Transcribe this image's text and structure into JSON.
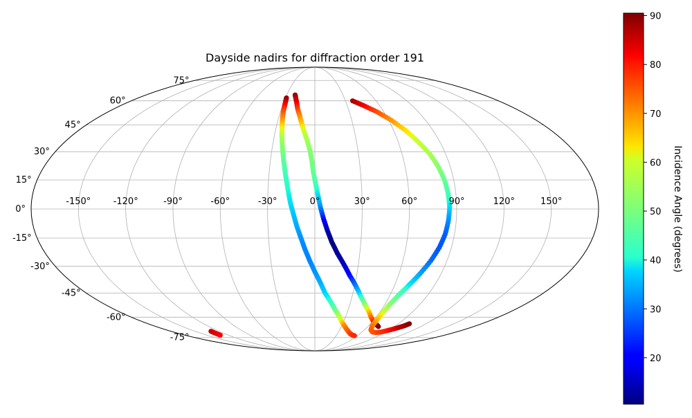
{
  "chart_data": {
    "type": "scatter",
    "projection": "mollweide",
    "title": "Dayside nadirs for diffraction order 191",
    "grid": true,
    "lon_ticks": [
      "-150°",
      "-120°",
      "-90°",
      "-60°",
      "-30°",
      "0°",
      "30°",
      "60°",
      "90°",
      "120°",
      "150°"
    ],
    "lat_ticks": [
      "-75°",
      "-60°",
      "-45°",
      "-30°",
      "-15°",
      "0°",
      "15°",
      "30°",
      "45°",
      "60°",
      "75°"
    ],
    "colorbar": {
      "label": "Incidence Angle (degrees)",
      "colormap": "jet",
      "range": [
        10.5,
        90.5
      ],
      "ticks": [
        "20",
        "30",
        "40",
        "50",
        "60",
        "70",
        "80",
        "90"
      ],
      "tick_values": [
        20,
        30,
        40,
        50,
        60,
        70,
        80,
        90
      ]
    },
    "series": [
      {
        "lon": [
          -29,
          -28.5,
          -28,
          -27.5,
          -26.5,
          -25.5,
          -24.5,
          -23,
          -21.5,
          -20,
          -18.5,
          -17,
          -15.5,
          -13.5,
          -11.5,
          -9,
          -6.5,
          -3.5,
          0,
          4,
          8,
          13,
          18,
          23,
          28,
          33,
          38,
          43,
          47.5,
          52,
          56
        ],
        "lat": [
          62,
          60,
          57,
          53,
          48,
          44,
          39,
          33,
          27,
          21,
          15,
          9,
          3,
          -3,
          -9,
          -15,
          -21,
          -27,
          -33,
          -39,
          -45,
          -50,
          -55,
          -59,
          -63,
          -66,
          -68.5,
          -70.5,
          -72,
          -73,
          -73.5
        ],
        "incidence": [
          90,
          87,
          82,
          76,
          70,
          64,
          58,
          52,
          48,
          45,
          42,
          40,
          38,
          36,
          34,
          32,
          31,
          31,
          32,
          34,
          37,
          41,
          47,
          55,
          63,
          70,
          73,
          75,
          77,
          78,
          79
        ]
      },
      {
        "lon": [
          -21,
          -19.5,
          -17.5,
          -15.5,
          -13,
          -10.5,
          -8,
          -5.5,
          -3.5,
          -2,
          -1,
          0.5,
          2,
          3.5,
          5.5,
          8,
          11,
          15,
          20,
          25,
          31,
          37,
          43,
          49,
          55,
          61,
          67,
          72
        ],
        "lat": [
          64,
          62,
          59,
          55,
          51,
          46,
          41,
          36,
          31,
          25,
          19,
          13,
          7,
          1,
          -5,
          -11,
          -17,
          -23,
          -29,
          -35,
          -41,
          -47,
          -52,
          -56,
          -60,
          -63,
          -65,
          -66.5
        ],
        "incidence": [
          90,
          87,
          84,
          78,
          72,
          66,
          60,
          56,
          52,
          50,
          48,
          44,
          38,
          32,
          22,
          14,
          11,
          12,
          15,
          21,
          30,
          40,
          52,
          64,
          72,
          78,
          85,
          90
        ]
      },
      {
        "lon": [
          37,
          45,
          54,
          62,
          69,
          74,
          79,
          82,
          84,
          85,
          85.5,
          85,
          84,
          82,
          79,
          75,
          71,
          67,
          64,
          63,
          63,
          64,
          68,
          73,
          79,
          85,
          91,
          96,
          100,
          102
        ],
        "lat": [
          60,
          57,
          53,
          48,
          42,
          36,
          29,
          22,
          15,
          8,
          1,
          -6,
          -13,
          -20,
          -27,
          -34,
          -40,
          -46,
          -52,
          -57,
          -62,
          -66,
          -69,
          -70.5,
          -71,
          -70.5,
          -69,
          -67.5,
          -66,
          -64.5
        ],
        "incidence": [
          88,
          83,
          76,
          70,
          64,
          60,
          56,
          52,
          48,
          44,
          38,
          32,
          28,
          27,
          29,
          33,
          38,
          44,
          52,
          60,
          67,
          72,
          74,
          75,
          76,
          78,
          81,
          85,
          88,
          90
        ]
      },
      {
        "lon": [
          -130,
          -130.5,
          -131
        ],
        "lat": [
          -70,
          -71.5,
          -73
        ],
        "incidence": [
          86,
          84,
          82
        ]
      }
    ]
  }
}
